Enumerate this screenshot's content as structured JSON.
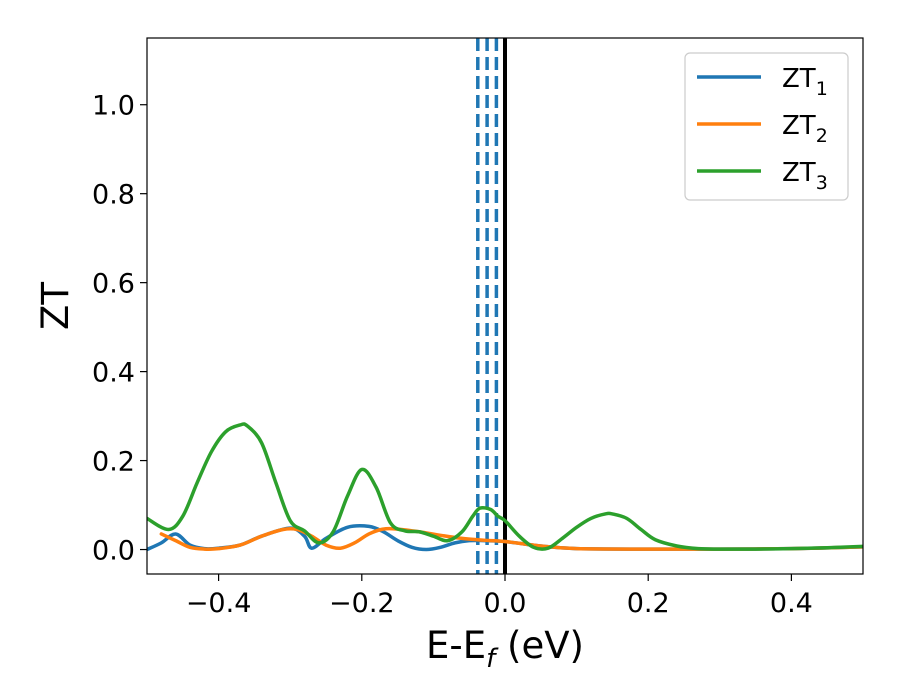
{
  "chart_data": {
    "type": "line",
    "xlabel": "E-E",
    "xlabel_sub": "f",
    "xlabel_unit": " (eV)",
    "ylabel": "ZT",
    "xlim": [
      -0.5,
      0.5
    ],
    "ylim": [
      -0.055,
      1.15
    ],
    "x_ticks": [
      -0.4,
      -0.2,
      0.0,
      0.2,
      0.4
    ],
    "x_tick_labels": [
      "−0.4",
      "−0.2",
      "0.0",
      "0.2",
      "0.4"
    ],
    "y_ticks": [
      0.0,
      0.2,
      0.4,
      0.6,
      0.8,
      1.0
    ],
    "y_tick_labels": [
      "0.0",
      "0.2",
      "0.4",
      "0.6",
      "0.8",
      "1.0"
    ],
    "legend_position": "top-right",
    "grid": false,
    "vertical_lines": {
      "solid_black_at": 0.0,
      "dashed_blue_at": [
        -0.038,
        -0.025,
        -0.012
      ]
    },
    "series": [
      {
        "name": "ZT",
        "name_sub": "1",
        "color": "#1f77b4",
        "x": [
          -0.5,
          -0.48,
          -0.46,
          -0.44,
          -0.42,
          -0.4,
          -0.37,
          -0.34,
          -0.3,
          -0.28,
          -0.27,
          -0.25,
          -0.22,
          -0.19,
          -0.17,
          -0.15,
          -0.13,
          -0.11,
          -0.09,
          -0.07,
          -0.05,
          -0.03,
          0.0,
          0.05,
          0.1,
          0.2,
          0.3,
          0.4,
          0.5
        ],
        "y": [
          0.0,
          0.015,
          0.035,
          0.01,
          0.002,
          0.003,
          0.01,
          0.03,
          0.048,
          0.03,
          0.003,
          0.025,
          0.05,
          0.052,
          0.04,
          0.02,
          0.005,
          0.0,
          0.005,
          0.015,
          0.02,
          0.02,
          0.018,
          0.008,
          0.002,
          0.001,
          0.001,
          0.002,
          0.006
        ]
      },
      {
        "name": "ZT",
        "name_sub": "2",
        "color": "#ff7f0e",
        "x": [
          -0.48,
          -0.46,
          -0.44,
          -0.42,
          -0.4,
          -0.37,
          -0.34,
          -0.31,
          -0.29,
          -0.27,
          -0.25,
          -0.23,
          -0.21,
          -0.19,
          -0.17,
          -0.15,
          -0.12,
          -0.09,
          -0.06,
          -0.03,
          0.0,
          0.05,
          0.1,
          0.2,
          0.3,
          0.4,
          0.5
        ],
        "y": [
          0.035,
          0.02,
          0.005,
          0.001,
          0.002,
          0.01,
          0.03,
          0.045,
          0.045,
          0.03,
          0.01,
          0.003,
          0.015,
          0.035,
          0.046,
          0.046,
          0.04,
          0.032,
          0.025,
          0.021,
          0.018,
          0.008,
          0.002,
          0.001,
          0.001,
          0.002,
          0.006
        ]
      },
      {
        "name": "ZT",
        "name_sub": "3",
        "color": "#2ca02c",
        "x": [
          -0.5,
          -0.47,
          -0.45,
          -0.43,
          -0.41,
          -0.39,
          -0.37,
          -0.36,
          -0.34,
          -0.32,
          -0.3,
          -0.28,
          -0.26,
          -0.24,
          -0.22,
          -0.2,
          -0.18,
          -0.16,
          -0.14,
          -0.12,
          -0.1,
          -0.08,
          -0.06,
          -0.045,
          -0.035,
          -0.02,
          -0.01,
          0.0,
          0.02,
          0.04,
          0.06,
          0.08,
          0.1,
          0.12,
          0.14,
          0.15,
          0.17,
          0.19,
          0.21,
          0.24,
          0.27,
          0.3,
          0.35,
          0.4,
          0.45,
          0.5
        ],
        "y": [
          0.07,
          0.045,
          0.075,
          0.15,
          0.22,
          0.265,
          0.28,
          0.278,
          0.24,
          0.15,
          0.065,
          0.042,
          0.015,
          0.04,
          0.12,
          0.18,
          0.14,
          0.06,
          0.042,
          0.04,
          0.03,
          0.02,
          0.04,
          0.075,
          0.093,
          0.09,
          0.075,
          0.065,
          0.03,
          0.005,
          0.003,
          0.025,
          0.05,
          0.07,
          0.08,
          0.08,
          0.07,
          0.045,
          0.022,
          0.008,
          0.002,
          0.001,
          0.001,
          0.002,
          0.004,
          0.007
        ]
      }
    ]
  }
}
